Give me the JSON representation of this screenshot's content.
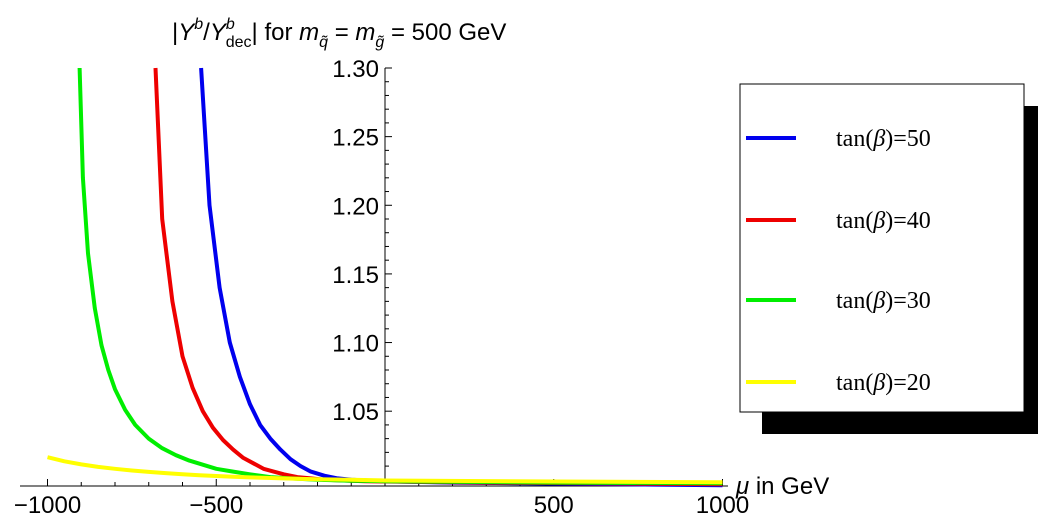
{
  "chart_data": {
    "type": "line",
    "title": {
      "pre": "|",
      "y1": "Y",
      "y1_sup": "b",
      "slash": "/",
      "y2": "Y",
      "y2_sup": "b",
      "y2_sub": "dec",
      "mid": "| for ",
      "m1": "m",
      "m1_sub": "q̃",
      "eq1": " = ",
      "m2": "m",
      "m2_sub": "g̃",
      "tail": " = 500 GeV"
    },
    "xlabel": {
      "symbol": "μ",
      "text": " in GeV"
    },
    "ylabel": "",
    "xlim": [
      -1030,
      1000
    ],
    "ylim": [
      0.9955,
      1.3
    ],
    "x_ticks": [
      -1000,
      -500,
      500,
      1000
    ],
    "x_tick_labels": [
      "−1000",
      "−500",
      "500",
      "1000"
    ],
    "y_ticks": [
      1.05,
      1.1,
      1.15,
      1.2,
      1.25,
      1.3
    ],
    "y_tick_labels": [
      "1.05",
      "1.10",
      "1.15",
      "1.20",
      "1.25",
      "1.30"
    ],
    "grid": false,
    "legend_position": "right",
    "series": [
      {
        "name": "tan(β)=50",
        "label_fn": "tan(",
        "label_sym": "β",
        "label_tail": ")=50",
        "color": "#0000ee",
        "x": [
          -545,
          -520,
          -490,
          -460,
          -430,
          -400,
          -370,
          -340,
          -310,
          -280,
          -250,
          -220,
          -180,
          -140,
          -100,
          -50,
          0,
          200,
          400,
          600,
          800,
          1000
        ],
        "y": [
          1.3,
          1.2,
          1.14,
          1.1,
          1.075,
          1.055,
          1.04,
          1.03,
          1.022,
          1.015,
          1.01,
          1.006,
          1.003,
          1.001,
          1.0,
          0.9995,
          0.999,
          0.998,
          0.9975,
          0.997,
          0.9965,
          0.996
        ]
      },
      {
        "name": "tan(β)=40",
        "label_fn": "tan(",
        "label_sym": "β",
        "label_tail": ")=40",
        "color": "#ee0000",
        "x": [
          -680,
          -660,
          -630,
          -600,
          -570,
          -540,
          -510,
          -480,
          -450,
          -420,
          -390,
          -360,
          -330,
          -300,
          -260,
          -220,
          -180,
          -120,
          -60,
          0,
          300,
          600,
          1000
        ],
        "y": [
          1.3,
          1.19,
          1.13,
          1.09,
          1.067,
          1.05,
          1.038,
          1.029,
          1.022,
          1.016,
          1.012,
          1.008,
          1.006,
          1.004,
          1.002,
          1.001,
          1.0,
          0.9995,
          0.999,
          0.9988,
          0.998,
          0.9975,
          0.9968
        ]
      },
      {
        "name": "tan(β)=30",
        "label_fn": "tan(",
        "label_sym": "β",
        "label_tail": ")=30",
        "color": "#00ee00",
        "x": [
          -905,
          -895,
          -880,
          -860,
          -840,
          -820,
          -800,
          -770,
          -740,
          -700,
          -660,
          -620,
          -580,
          -540,
          -500,
          -450,
          -400,
          -340,
          -280,
          -200,
          -100,
          0,
          500,
          1000
        ],
        "y": [
          1.3,
          1.22,
          1.165,
          1.125,
          1.098,
          1.08,
          1.066,
          1.051,
          1.04,
          1.03,
          1.023,
          1.018,
          1.014,
          1.011,
          1.008,
          1.006,
          1.004,
          1.002,
          1.001,
          1.0,
          0.9993,
          0.999,
          0.998,
          0.9975
        ]
      },
      {
        "name": "tan(β)=20",
        "label_fn": "tan(",
        "label_sym": "β",
        "label_tail": ")=20",
        "color": "#ffff00",
        "x": [
          -1000,
          -950,
          -900,
          -850,
          -800,
          -750,
          -700,
          -650,
          -600,
          -550,
          -500,
          -450,
          -400,
          -350,
          -300,
          -250,
          -200,
          -100,
          0,
          500,
          1000
        ],
        "y": [
          1.0165,
          1.0135,
          1.0112,
          1.0094,
          1.008,
          1.0068,
          1.0058,
          1.0049,
          1.0041,
          1.0034,
          1.0028,
          1.0023,
          1.0018,
          1.0014,
          1.001,
          1.0007,
          1.0004,
          1.0,
          0.9995,
          0.9988,
          0.9982
        ]
      }
    ]
  }
}
